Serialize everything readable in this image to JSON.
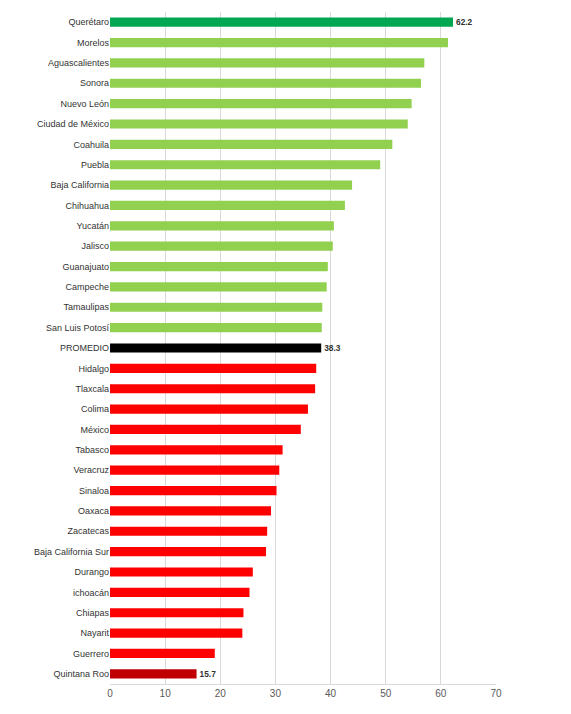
{
  "chart_data": {
    "type": "bar",
    "orientation": "horizontal",
    "categories": [
      "Querétaro",
      "Morelos",
      "Aguascalientes",
      "Sonora",
      "Nuevo León",
      "Ciudad de México",
      "Coahuila",
      "Puebla",
      "Baja California",
      "Chihuahua",
      "Yucatán",
      "Jalisco",
      "Guanajuato",
      "Campeche",
      "Tamaulipas",
      "San Luis Potosí",
      "PROMEDIO",
      "Hidalgo",
      "Tlaxcala",
      "Colima",
      "México",
      "Tabasco",
      "Veracruz",
      "Sinaloa",
      "Oaxaca",
      "Zacatecas",
      "Baja California Sur",
      "Durango",
      "ichoacán",
      "Chiapas",
      "Nayarit",
      "Guerrero",
      "Quintana Roo"
    ],
    "values": [
      62.2,
      61.3,
      57.0,
      56.4,
      54.7,
      54.0,
      51.2,
      49.0,
      43.9,
      42.6,
      40.6,
      40.4,
      39.5,
      39.3,
      38.5,
      38.4,
      38.3,
      37.4,
      37.2,
      35.9,
      34.6,
      31.3,
      30.7,
      30.2,
      29.2,
      28.5,
      28.3,
      25.9,
      25.3,
      24.2,
      24.0,
      19.0,
      15.7
    ],
    "data_labels": true,
    "value_labels": [
      "62.2",
      null,
      null,
      null,
      null,
      null,
      null,
      null,
      null,
      null,
      null,
      null,
      null,
      null,
      null,
      null,
      "38.3",
      null,
      null,
      null,
      null,
      null,
      null,
      null,
      null,
      null,
      null,
      null,
      null,
      null,
      null,
      null,
      "15.7"
    ],
    "colors": [
      "#00a651",
      "#92d050",
      "#92d050",
      "#92d050",
      "#92d050",
      "#92d050",
      "#92d050",
      "#92d050",
      "#92d050",
      "#92d050",
      "#92d050",
      "#92d050",
      "#92d050",
      "#92d050",
      "#92d050",
      "#92d050",
      "#000000",
      "#ff0000",
      "#ff0000",
      "#ff0000",
      "#ff0000",
      "#ff0000",
      "#ff0000",
      "#ff0000",
      "#ff0000",
      "#ff0000",
      "#ff0000",
      "#ff0000",
      "#ff0000",
      "#ff0000",
      "#ff0000",
      "#ff0000",
      "#c00000"
    ],
    "xlim": [
      0,
      70
    ],
    "xticks": [
      0,
      10,
      20,
      30,
      40,
      50,
      60,
      70
    ],
    "grid": true
  }
}
